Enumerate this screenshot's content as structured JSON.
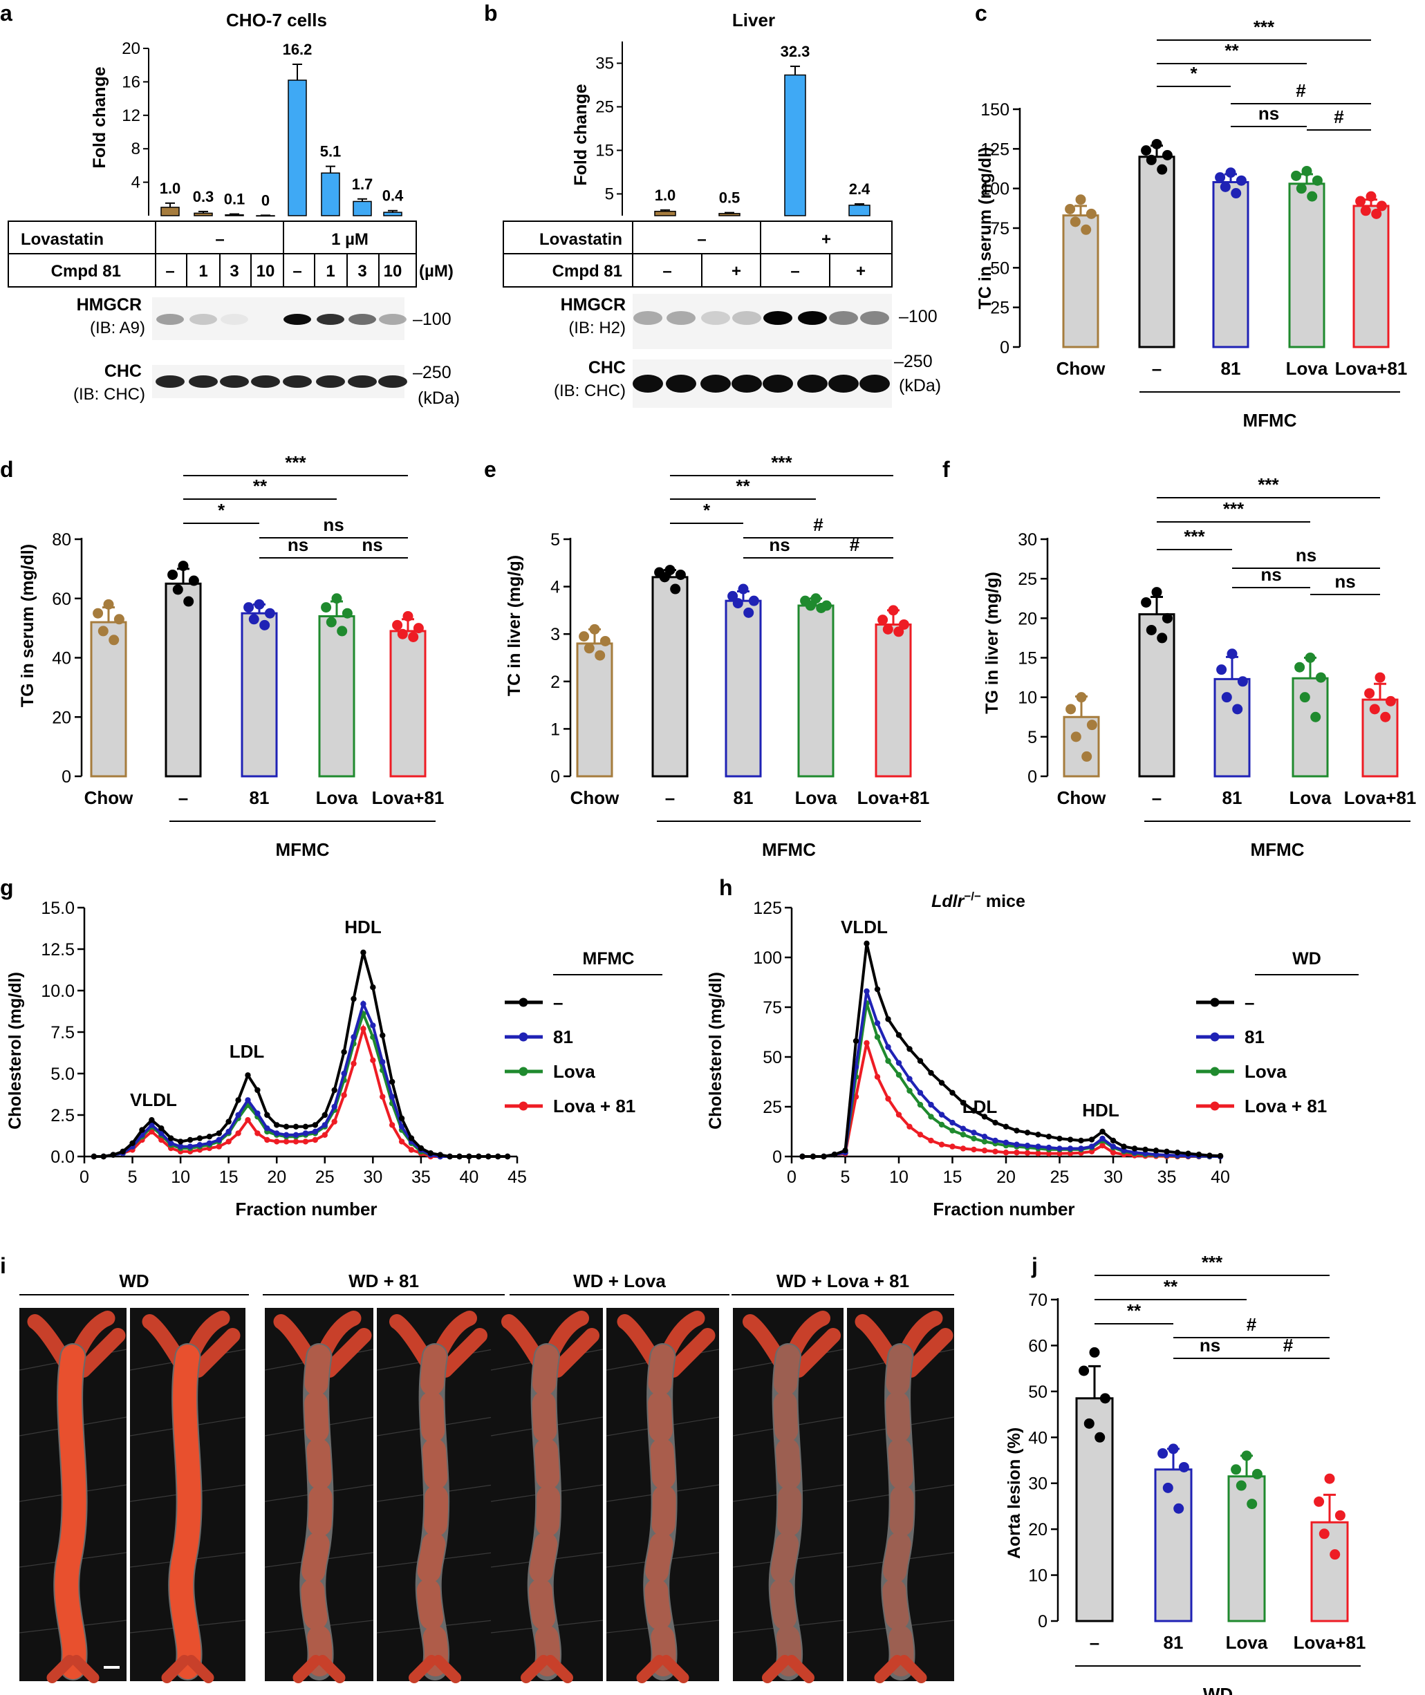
{
  "colors": {
    "brown": "#a67c3d",
    "black": "#000000",
    "blue": "#1f22b5",
    "green": "#1f8a2e",
    "red": "#ee1c24",
    "cyan": "#3fa9f5",
    "grey": "#d3d3d3"
  },
  "panels": {
    "a": {
      "letter": "a",
      "title": "CHO-7 cells",
      "ylabel": "Fold change",
      "yticks": [
        "4",
        "8",
        "12",
        "16",
        "20"
      ],
      "value_labels": [
        "1.0",
        "0.3",
        "0.1",
        "0",
        "16.2",
        "5.1",
        "1.7",
        "0.4"
      ],
      "row1_label": "Lovastatin",
      "row1_values": [
        "–",
        "1 µM"
      ],
      "row2_label": "Cmpd 81",
      "row2_values": [
        "–",
        "1",
        "3",
        "10",
        "–",
        "1",
        "3",
        "10"
      ],
      "unit": "(µM)",
      "blot1_label": "HMGCR",
      "blot1_sub": "(IB: A9)",
      "blot2_label": "CHC",
      "blot2_sub": "(IB: CHC)",
      "marker1": "–100",
      "marker2": "–250",
      "kda": "(kDa)"
    },
    "b": {
      "letter": "b",
      "title": "Liver",
      "ylabel": "Fold change",
      "yticks": [
        "5",
        "15",
        "25",
        "35"
      ],
      "value_labels": [
        "1.0",
        "0.5",
        "32.3",
        "2.4"
      ],
      "row1_label": "Lovastatin",
      "row1_values": [
        "–",
        "+"
      ],
      "row2_label": "Cmpd 81",
      "row2_values": [
        "–",
        "+",
        "–",
        "+"
      ],
      "blot1_label": "HMGCR",
      "blot1_sub": "(IB: H2)",
      "blot2_label": "CHC",
      "blot2_sub": "(IB: CHC)",
      "marker1": "–100",
      "marker2": "–250",
      "kda": "(kDa)"
    },
    "c": {
      "letter": "c",
      "ylabel": "TC in serum (mg/dl)",
      "group": "MFMC",
      "sig": [
        "*",
        "**",
        "***",
        "ns",
        "#",
        "#"
      ]
    },
    "d": {
      "letter": "d",
      "ylabel": "TG in serum (mg/dl)",
      "group": "MFMC",
      "sig": [
        "*",
        "**",
        "***",
        "ns",
        "ns",
        "ns"
      ]
    },
    "e": {
      "letter": "e",
      "ylabel": "TC in liver (mg/g)",
      "group": "MFMC",
      "sig": [
        "*",
        "**",
        "***",
        "ns",
        "#",
        "#"
      ]
    },
    "f": {
      "letter": "f",
      "ylabel": "TG in liver (mg/g)",
      "group": "MFMC",
      "sig": [
        "***",
        "***",
        "***",
        "ns",
        "ns",
        "ns"
      ]
    },
    "g": {
      "letter": "g",
      "ylabel": "Cholesterol (mg/dl)",
      "xlabel": "Fraction number",
      "peaks": [
        "VLDL",
        "LDL",
        "HDL"
      ],
      "legend_title": "MFMC"
    },
    "h": {
      "letter": "h",
      "ylabel": "Cholesterol (mg/dl)",
      "xlabel": "Fraction number",
      "title_italic": "Ldlr",
      "title_sup": "−/−",
      "title_rest": " mice",
      "peaks": [
        "VLDL",
        "LDL",
        "HDL"
      ],
      "legend_title": "WD"
    },
    "i": {
      "letter": "i",
      "groups": [
        "WD",
        "WD + 81",
        "WD + Lova",
        "WD + Lova + 81"
      ]
    },
    "j": {
      "letter": "j",
      "ylabel": "Aorta lesion (%)",
      "group": "WD",
      "sig": [
        "**",
        "**",
        "***",
        "ns",
        "#",
        "#"
      ]
    }
  },
  "chart_data": [
    {
      "id": "a",
      "type": "bar",
      "categories": [
        "–/–",
        "–/1",
        "–/3",
        "–/10",
        "1µM/–",
        "1µM/1",
        "1µM/3",
        "1µM/10"
      ],
      "values": [
        1.0,
        0.3,
        0.1,
        0,
        16.2,
        5.1,
        1.7,
        0.4
      ],
      "errors": [
        0.5,
        0.2,
        0.1,
        0.05,
        1.9,
        0.8,
        0.3,
        0.2
      ],
      "ylim": [
        0,
        20
      ]
    },
    {
      "id": "b",
      "type": "bar",
      "categories": [
        "–/–",
        "–/+",
        "+/–",
        "+/+"
      ],
      "values": [
        1.0,
        0.5,
        32.3,
        2.4
      ],
      "errors": [
        0.3,
        0.2,
        2.0,
        0.3
      ],
      "ylim": [
        0,
        40
      ]
    },
    {
      "id": "c",
      "type": "bar",
      "categories": [
        "Chow",
        "–",
        "81",
        "Lova",
        "Lova+81"
      ],
      "values": [
        83,
        120,
        104,
        103,
        89
      ],
      "errors": [
        6,
        7,
        5,
        6,
        4
      ],
      "points": [
        [
          93,
          87,
          84,
          79,
          74
        ],
        [
          128,
          124,
          121,
          118,
          112
        ],
        [
          110,
          107,
          105,
          101,
          97
        ],
        [
          111,
          108,
          105,
          100,
          95
        ],
        [
          95,
          92,
          89,
          86,
          84
        ]
      ],
      "ylim": [
        0,
        150
      ],
      "yticks": [
        0,
        25,
        50,
        75,
        100,
        125,
        150
      ]
    },
    {
      "id": "d",
      "type": "bar",
      "categories": [
        "Chow",
        "–",
        "81",
        "Lova",
        "Lova+81"
      ],
      "values": [
        52,
        65,
        55,
        54,
        49
      ],
      "errors": [
        5,
        5,
        3,
        5,
        4
      ],
      "points": [
        [
          58,
          55,
          53,
          49,
          46
        ],
        [
          71,
          68,
          66,
          63,
          59
        ],
        [
          58,
          57,
          55,
          53,
          51
        ],
        [
          60,
          57,
          55,
          52,
          49
        ],
        [
          54,
          51,
          50,
          48,
          47
        ]
      ],
      "ylim": [
        0,
        80
      ],
      "yticks": [
        0,
        20,
        40,
        60,
        80
      ]
    },
    {
      "id": "e",
      "type": "bar",
      "categories": [
        "Chow",
        "–",
        "81",
        "Lova",
        "Lova+81"
      ],
      "values": [
        2.8,
        4.2,
        3.7,
        3.6,
        3.2
      ],
      "errors": [
        0.3,
        0.15,
        0.2,
        0.15,
        0.3
      ],
      "points": [
        [
          3.1,
          2.95,
          2.85,
          2.7,
          2.55
        ],
        [
          4.35,
          4.3,
          4.25,
          4.2,
          3.95
        ],
        [
          3.95,
          3.8,
          3.7,
          3.65,
          3.45
        ],
        [
          3.75,
          3.7,
          3.6,
          3.6,
          3.55
        ],
        [
          3.5,
          3.3,
          3.2,
          3.1,
          3.05
        ]
      ],
      "ylim": [
        0,
        5
      ],
      "yticks": [
        0,
        1,
        2,
        3,
        4,
        5
      ]
    },
    {
      "id": "f",
      "type": "bar",
      "categories": [
        "Chow",
        "–",
        "81",
        "Lova",
        "Lova+81"
      ],
      "values": [
        7.5,
        20.5,
        12.3,
        12.4,
        9.7
      ],
      "errors": [
        2.6,
        2.2,
        2.8,
        2.6,
        2.0
      ],
      "points": [
        [
          10,
          8.5,
          6.5,
          5,
          2.5
        ],
        [
          23.3,
          22,
          20,
          18.5,
          17.5
        ],
        [
          15.5,
          13.5,
          12,
          10,
          8.5
        ],
        [
          15,
          13.8,
          12.5,
          10,
          7.5
        ],
        [
          12.5,
          10.5,
          9.5,
          8.5,
          7.5
        ]
      ],
      "ylim": [
        0,
        30
      ],
      "yticks": [
        0,
        5,
        10,
        15,
        20,
        25,
        30
      ]
    },
    {
      "id": "g",
      "type": "line",
      "title": "",
      "xlabel": "Fraction number",
      "ylabel": "Cholesterol (mg/dl)",
      "xlim": [
        0,
        45
      ],
      "ylim": [
        0,
        15
      ],
      "xticks": [
        0,
        5,
        10,
        15,
        20,
        25,
        30,
        35,
        40,
        45
      ],
      "yticks": [
        0,
        2.5,
        5,
        7.5,
        10,
        12.5,
        15
      ],
      "x": [
        1,
        2,
        3,
        4,
        5,
        6,
        7,
        8,
        9,
        10,
        11,
        12,
        13,
        14,
        15,
        16,
        17,
        18,
        19,
        20,
        21,
        22,
        23,
        24,
        25,
        26,
        27,
        28,
        29,
        30,
        31,
        32,
        33,
        34,
        35,
        36,
        37,
        38,
        39,
        40,
        41,
        42,
        43,
        44
      ],
      "series": [
        {
          "name": "–",
          "values": [
            0,
            0,
            0.1,
            0.3,
            0.8,
            1.6,
            2.2,
            1.7,
            1.1,
            0.9,
            1,
            1.1,
            1.2,
            1.4,
            2.1,
            3.4,
            4.9,
            4,
            2.5,
            1.9,
            1.8,
            1.8,
            1.8,
            1.9,
            2.5,
            4,
            6.3,
            9.5,
            12.3,
            10.2,
            7.3,
            4.5,
            2.3,
            1.1,
            0.5,
            0.2,
            0.1,
            0,
            0,
            0,
            0,
            0,
            0,
            0
          ]
        },
        {
          "name": "81",
          "values": [
            0,
            0,
            0.1,
            0.2,
            0.6,
            1.3,
            1.9,
            1.4,
            0.8,
            0.6,
            0.6,
            0.7,
            0.8,
            1,
            1.5,
            2.5,
            3.4,
            2.6,
            1.7,
            1.4,
            1.3,
            1.3,
            1.4,
            1.5,
            1.9,
            3,
            5,
            7.2,
            9.2,
            7.9,
            5.7,
            3.6,
            1.8,
            0.9,
            0.4,
            0.1,
            0,
            0,
            0,
            0,
            0,
            0,
            0,
            0
          ]
        },
        {
          "name": "Lova",
          "values": [
            0,
            0,
            0.1,
            0.2,
            0.6,
            1.2,
            1.8,
            1.3,
            0.7,
            0.5,
            0.5,
            0.6,
            0.7,
            0.9,
            1.4,
            2.3,
            3.1,
            2.4,
            1.5,
            1.3,
            1.2,
            1.2,
            1.3,
            1.4,
            1.8,
            2.8,
            4.6,
            6.8,
            8.6,
            7.2,
            5.2,
            3.2,
            1.6,
            0.8,
            0.3,
            0.1,
            0,
            0,
            0,
            0,
            0,
            0,
            0,
            0
          ]
        },
        {
          "name": "Lova + 81",
          "values": [
            0,
            0,
            0.1,
            0.2,
            0.4,
            1,
            1.5,
            1,
            0.5,
            0.3,
            0.3,
            0.4,
            0.5,
            0.6,
            0.9,
            1.4,
            2.2,
            1.4,
            1,
            0.9,
            0.9,
            0.9,
            0.9,
            1,
            1.3,
            2.1,
            3.7,
            5.6,
            7.7,
            5.8,
            3.6,
            1.9,
            0.9,
            0.4,
            0.2,
            0,
            0,
            0,
            0,
            0,
            0,
            0,
            0,
            0
          ]
        }
      ]
    },
    {
      "id": "h",
      "type": "line",
      "title": "Ldlr−/− mice",
      "xlabel": "Fraction number",
      "ylabel": "Cholesterol (mg/dl)",
      "xlim": [
        0,
        40
      ],
      "ylim": [
        0,
        125
      ],
      "xticks": [
        0,
        5,
        10,
        15,
        20,
        25,
        30,
        35,
        40
      ],
      "yticks": [
        0,
        25,
        50,
        75,
        100,
        125
      ],
      "x": [
        1,
        2,
        3,
        4,
        5,
        6,
        7,
        8,
        9,
        10,
        11,
        12,
        13,
        14,
        15,
        16,
        17,
        18,
        19,
        20,
        21,
        22,
        23,
        24,
        25,
        26,
        27,
        28,
        29,
        30,
        31,
        32,
        33,
        34,
        35,
        36,
        37,
        38,
        39,
        40
      ],
      "series": [
        {
          "name": "–",
          "values": [
            0,
            0,
            0,
            1,
            3,
            58,
            107,
            84,
            69,
            61,
            54,
            48,
            42,
            37,
            32,
            27,
            23,
            20,
            17,
            15,
            13,
            12,
            11,
            10,
            9,
            8.5,
            8,
            8.5,
            12.5,
            8,
            5,
            4,
            3.5,
            3,
            2.5,
            2,
            1.5,
            1,
            0.5,
            0.3
          ]
        },
        {
          "name": "81",
          "values": [
            0,
            0,
            0,
            1,
            2,
            45,
            83,
            67,
            55,
            47,
            39,
            32,
            26,
            21,
            17,
            14,
            12,
            10,
            8,
            7,
            6,
            5.5,
            5,
            4.5,
            4,
            4,
            4,
            5,
            9,
            5,
            3,
            2,
            1.5,
            1,
            0.7,
            0.5,
            0.3,
            0.2,
            0.1,
            0
          ]
        },
        {
          "name": "Lova",
          "values": [
            0,
            0,
            0,
            1,
            2,
            40,
            77,
            60,
            48,
            41,
            33,
            26,
            20,
            16,
            13,
            11,
            9,
            7.5,
            6.5,
            5.5,
            5,
            4.5,
            4,
            3.5,
            3.5,
            3.5,
            3.5,
            4.5,
            8,
            4.5,
            2.5,
            1.5,
            1,
            0.7,
            0.5,
            0.3,
            0.2,
            0.1,
            0,
            0
          ]
        },
        {
          "name": "Lova + 81",
          "values": [
            0,
            0,
            0,
            1,
            1.5,
            30,
            57,
            40,
            29,
            21,
            15,
            11,
            8,
            6,
            5,
            4,
            3.5,
            3,
            2.5,
            2,
            2,
            1.8,
            1.6,
            1.5,
            1.5,
            1.6,
            1.8,
            2.5,
            5.5,
            2,
            1,
            0.5,
            0.3,
            0.2,
            0.1,
            0,
            0,
            0,
            0,
            0
          ]
        }
      ]
    },
    {
      "id": "j",
      "type": "bar",
      "categories": [
        "–",
        "81",
        "Lova",
        "Lova+81"
      ],
      "values": [
        48.5,
        33,
        31.5,
        21.5
      ],
      "errors": [
        7,
        4.5,
        4.5,
        6
      ],
      "points": [
        [
          58.5,
          54.5,
          48.5,
          43,
          40
        ],
        [
          37.5,
          36.5,
          33.5,
          29,
          24.5
        ],
        [
          36,
          33,
          32,
          29.5,
          25.5
        ],
        [
          31,
          26,
          23,
          19,
          14.5
        ]
      ],
      "ylim": [
        0,
        70
      ],
      "yticks": [
        0,
        10,
        20,
        30,
        40,
        50,
        60,
        70
      ]
    }
  ]
}
